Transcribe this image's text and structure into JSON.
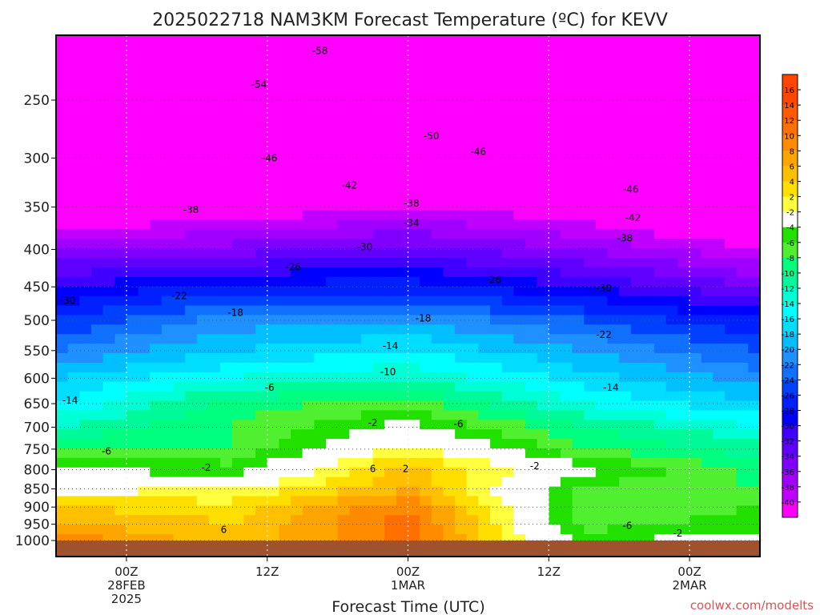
{
  "chart_data": {
    "type": "heatmap",
    "title": "2025022718 NAM3KM Forecast Temperature (ºC) for KEVV",
    "xlabel": "Forecast Time (UTC)",
    "ylabel": "",
    "x_ticks": [
      {
        "hour": 6,
        "lines": [
          "00Z",
          "28FEB",
          "2025"
        ]
      },
      {
        "hour": 18,
        "lines": [
          "12Z"
        ]
      },
      {
        "hour": 30,
        "lines": [
          "00Z",
          "1MAR"
        ]
      },
      {
        "hour": 42,
        "lines": [
          "12Z"
        ]
      },
      {
        "hour": 54,
        "lines": [
          "00Z",
          "2MAR"
        ]
      }
    ],
    "xlim_hours": [
      0,
      60
    ],
    "y_ticks": [
      250,
      300,
      350,
      400,
      450,
      500,
      550,
      600,
      650,
      700,
      750,
      800,
      850,
      900,
      950,
      1000
    ],
    "ylim_hpa": [
      200,
      1010
    ],
    "y_scale": "log-pressure",
    "grid": true,
    "colorbar_labels": [
      16,
      14,
      12,
      10,
      8,
      6,
      4,
      2,
      -2,
      -4,
      -6,
      -8,
      -10,
      -12,
      -14,
      -16,
      -18,
      -20,
      -22,
      -24,
      -26,
      -28,
      -30,
      -32,
      -34,
      -36,
      -38,
      -40
    ],
    "colors": {
      "cold_extreme": "#ff00ff",
      "ground": "#a0522d",
      "zero_line": "#e0006b"
    },
    "series": [
      {
        "hpa": 225,
        "t0": -60,
        "t15": -60,
        "t30": -60,
        "t45": -60,
        "t60": -60
      },
      {
        "hpa": 250,
        "t0": -56,
        "t15": -56,
        "t30": -54,
        "t45": -56,
        "t60": -58
      },
      {
        "hpa": 300,
        "t0": -48,
        "t15": -48,
        "t30": -48,
        "t45": -48,
        "t60": -50
      },
      {
        "hpa": 350,
        "t0": -42,
        "t15": -40,
        "t30": -38,
        "t45": -40,
        "t60": -44
      },
      {
        "hpa": 400,
        "t0": -34,
        "t15": -33,
        "t30": -31,
        "t45": -34,
        "t60": -38
      },
      {
        "hpa": 450,
        "t0": -28,
        "t15": -25,
        "t30": -25,
        "t45": -28,
        "t60": -32
      },
      {
        "hpa": 500,
        "t0": -24,
        "t15": -19,
        "t30": -18,
        "t45": -22,
        "t60": -26
      },
      {
        "hpa": 550,
        "t0": -20,
        "t15": -16,
        "t30": -14,
        "t45": -18,
        "t60": -22
      },
      {
        "hpa": 600,
        "t0": -16,
        "t15": -12,
        "t30": -10,
        "t45": -15,
        "t60": -19
      },
      {
        "hpa": 650,
        "t0": -14,
        "t15": -7,
        "t30": -5,
        "t45": -12,
        "t60": -16
      },
      {
        "hpa": 700,
        "t0": -10,
        "t15": -6,
        "t30": -1,
        "t45": -8,
        "t60": -12
      },
      {
        "hpa": 750,
        "t0": -6,
        "t15": -6,
        "t30": 3,
        "t45": -6,
        "t60": -9
      },
      {
        "hpa": 800,
        "t0": -2,
        "t15": -3,
        "t30": 7,
        "t45": -1,
        "t60": -7
      },
      {
        "hpa": 850,
        "t0": 1,
        "t15": 2,
        "t30": 8,
        "t45": -5,
        "t60": -6
      },
      {
        "hpa": 900,
        "t0": 6,
        "t15": 5,
        "t30": 12,
        "t45": -5,
        "t60": -4
      },
      {
        "hpa": 950,
        "t0": 8,
        "t15": 6,
        "t30": 13,
        "t45": -5,
        "t60": -3
      },
      {
        "hpa": 1000,
        "t0": 12,
        "t15": 6,
        "t30": 13,
        "t45": -3,
        "t60": 0
      }
    ],
    "contour_labels": [
      {
        "text": "-58",
        "hour": 22.5,
        "hpa": 214
      },
      {
        "text": "-54",
        "hour": 17.3,
        "hpa": 238
      },
      {
        "text": "-50",
        "hour": 32.0,
        "hpa": 280
      },
      {
        "text": "-46",
        "hour": 18.2,
        "hpa": 300
      },
      {
        "text": "-46",
        "hour": 36.0,
        "hpa": 294
      },
      {
        "text": "-46",
        "hour": 49.0,
        "hpa": 331
      },
      {
        "text": "-42",
        "hour": 25.0,
        "hpa": 327
      },
      {
        "text": "-42",
        "hour": 49.2,
        "hpa": 362
      },
      {
        "text": "-38",
        "hour": 11.5,
        "hpa": 353
      },
      {
        "text": "-38",
        "hour": 30.3,
        "hpa": 346
      },
      {
        "text": "-38",
        "hour": 48.5,
        "hpa": 386
      },
      {
        "text": "-34",
        "hour": 30.3,
        "hpa": 368
      },
      {
        "text": "-30",
        "hour": 26.3,
        "hpa": 397
      },
      {
        "text": "-30",
        "hour": 1.0,
        "hpa": 470
      },
      {
        "text": "-30",
        "hour": 46.7,
        "hpa": 452
      },
      {
        "text": "-26",
        "hour": 20.2,
        "hpa": 423
      },
      {
        "text": "-26",
        "hour": 37.3,
        "hpa": 440
      },
      {
        "text": "-22",
        "hour": 10.5,
        "hpa": 463
      },
      {
        "text": "-22",
        "hour": 46.7,
        "hpa": 523
      },
      {
        "text": "-18",
        "hour": 15.3,
        "hpa": 488
      },
      {
        "text": "-18",
        "hour": 31.3,
        "hpa": 497
      },
      {
        "text": "-14",
        "hour": 28.5,
        "hpa": 542
      },
      {
        "text": "-14",
        "hour": 1.2,
        "hpa": 643
      },
      {
        "text": "-14",
        "hour": 47.3,
        "hpa": 618
      },
      {
        "text": "-10",
        "hour": 28.3,
        "hpa": 588
      },
      {
        "text": "-6",
        "hour": 18.2,
        "hpa": 618
      },
      {
        "text": "-6",
        "hour": 34.3,
        "hpa": 693
      },
      {
        "text": "-6",
        "hour": 4.3,
        "hpa": 755
      },
      {
        "text": "-6",
        "hour": 48.7,
        "hpa": 954
      },
      {
        "text": "-2",
        "hour": 27.0,
        "hpa": 690
      },
      {
        "text": "-2",
        "hour": 12.8,
        "hpa": 795
      },
      {
        "text": "-2",
        "hour": 40.8,
        "hpa": 791
      },
      {
        "text": "-2",
        "hour": 53.0,
        "hpa": 977
      },
      {
        "text": "2",
        "hour": 29.8,
        "hpa": 798
      },
      {
        "text": "6",
        "hour": 27.0,
        "hpa": 798
      },
      {
        "text": "6",
        "hour": 14.3,
        "hpa": 967
      }
    ]
  },
  "footer": {
    "credit": "coolwx.com/modelts"
  }
}
